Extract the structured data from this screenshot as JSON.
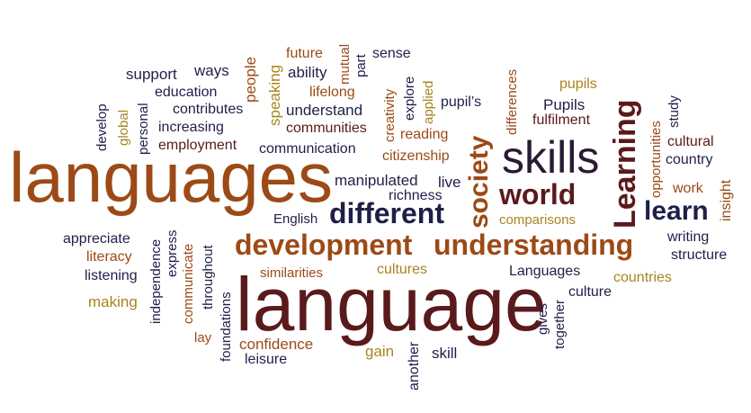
{
  "words": {
    "languages": "languages",
    "language": "language",
    "skills": "skills",
    "development": "development",
    "understanding": "understanding",
    "different": "different",
    "world": "world",
    "learn": "learn",
    "Learning": "Learning",
    "society": "society",
    "support": "support",
    "ways": "ways",
    "people": "people",
    "future": "future",
    "mutual": "mutual",
    "part": "part",
    "sense": "sense",
    "ability": "ability",
    "education": "education",
    "lifelong": "lifelong",
    "contributes": "contributes",
    "speaking": "speaking",
    "understand": "understand",
    "creativity": "creativity",
    "explore": "explore",
    "applied": "applied",
    "pupils_apos": "pupil’s",
    "differences": "differences",
    "pupils": "pupils",
    "Pupils": "Pupils",
    "fulfilment": "fulfilment",
    "opportunities": "opportunities",
    "study": "study",
    "cultural": "cultural",
    "country": "country",
    "work": "work",
    "insight": "insight",
    "develop": "develop",
    "global": "global",
    "personal": "personal",
    "increasing": "increasing",
    "communities": "communities",
    "reading": "reading",
    "employment": "employment",
    "communication": "communication",
    "citizenship": "citizenship",
    "manipulated": "manipulated",
    "live": "live",
    "richness": "richness",
    "English": "English",
    "comparisons": "comparisons",
    "appreciate": "appreciate",
    "literacy": "literacy",
    "listening": "listening",
    "making": "making",
    "independence": "independence",
    "express": "express",
    "communicate": "communicate",
    "throughout": "throughout",
    "foundations": "foundations",
    "lay": "lay",
    "similarities": "similarities",
    "cultures": "cultures",
    "Languages": "Languages",
    "gives": "gives",
    "together": "together",
    "culture": "culture",
    "countries": "countries",
    "writing": "writing",
    "structure": "structure",
    "confidence": "confidence",
    "leisure": "leisure",
    "gain": "gain",
    "another": "another",
    "skill": "skill"
  },
  "colors": {
    "brown": "#9c4a16",
    "dark": "#2a1a35",
    "navy": "#1f1f4a",
    "gold": "#a88420",
    "maroon": "#5a1a1c"
  }
}
